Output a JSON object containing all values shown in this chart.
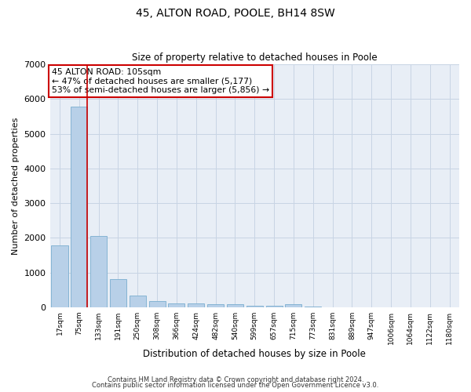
{
  "title1": "45, ALTON ROAD, POOLE, BH14 8SW",
  "title2": "Size of property relative to detached houses in Poole",
  "xlabel": "Distribution of detached houses by size in Poole",
  "ylabel": "Number of detached properties",
  "bar_color": "#b8d0e8",
  "bar_edge_color": "#7aaed0",
  "categories": [
    "17sqm",
    "75sqm",
    "133sqm",
    "191sqm",
    "250sqm",
    "308sqm",
    "366sqm",
    "424sqm",
    "482sqm",
    "540sqm",
    "599sqm",
    "657sqm",
    "715sqm",
    "773sqm",
    "831sqm",
    "889sqm",
    "947sqm",
    "1006sqm",
    "1064sqm",
    "1122sqm",
    "1180sqm"
  ],
  "values": [
    1780,
    5780,
    2050,
    820,
    340,
    190,
    120,
    110,
    80,
    80,
    55,
    45,
    85,
    15,
    10,
    8,
    5,
    4,
    3,
    2,
    2
  ],
  "ylim": [
    0,
    7000
  ],
  "yticks": [
    0,
    1000,
    2000,
    3000,
    4000,
    5000,
    6000,
    7000
  ],
  "red_line_x": 1.42,
  "annotation_line1": "45 ALTON ROAD: 105sqm",
  "annotation_line2": "← 47% of detached houses are smaller (5,177)",
  "annotation_line3": "53% of semi-detached houses are larger (5,856) →",
  "red_line_color": "#cc0000",
  "annotation_box_facecolor": "#ffffff",
  "annotation_box_edgecolor": "#cc0000",
  "grid_color": "#c8d4e4",
  "background_color": "#e8eef6",
  "footer1": "Contains HM Land Registry data © Crown copyright and database right 2024.",
  "footer2": "Contains public sector information licensed under the Open Government Licence v3.0."
}
